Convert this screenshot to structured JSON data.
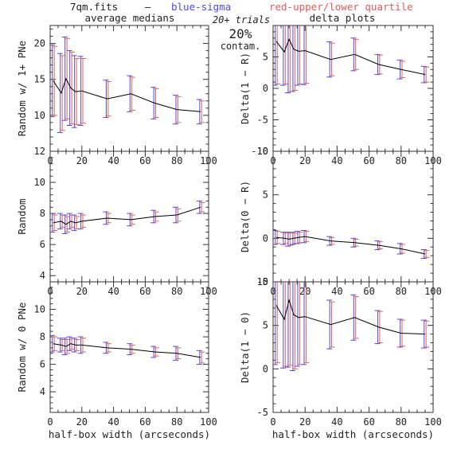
{
  "header": {
    "file": "7qm.fits",
    "dash": "–",
    "blue_label": "blue-sigma",
    "red_label": "red-upper/lower quartile",
    "trials": "20+ trials",
    "contam_pct": "20%",
    "contam_word": "contam.",
    "left_title": "average medians",
    "right_title": "delta plots"
  },
  "colors": {
    "line": "#000000",
    "blue": "#4a4ae8",
    "red": "#e85a5a",
    "axis": "#333333"
  },
  "chart_data": [
    {
      "type": "line",
      "panel": "top-left",
      "ylabel": "Random w/ 1+ PNe",
      "xlabel": "",
      "xlim": [
        0,
        100
      ],
      "ylim": [
        5,
        22.5
      ],
      "xticks": [
        0,
        20,
        40,
        60,
        80,
        100
      ],
      "yticks": [
        10,
        15,
        20
      ],
      "x": [
        2,
        7,
        10,
        13,
        16,
        20,
        36,
        51,
        66,
        80,
        95
      ],
      "y": [
        14.8,
        13.1,
        15.1,
        13.8,
        13.3,
        13.4,
        12.3,
        13.0,
        11.7,
        10.8,
        10.5
      ],
      "err_blue": [
        5.0,
        5.5,
        5.8,
        5.2,
        5.0,
        4.8,
        2.6,
        2.5,
        2.2,
        2.0,
        1.7
      ],
      "err_red": [
        4.8,
        5.2,
        5.6,
        5.0,
        4.6,
        4.5,
        2.4,
        2.3,
        2.0,
        1.8,
        1.5
      ]
    },
    {
      "type": "line",
      "panel": "top-right",
      "ylabel": "Delta(1 − R)",
      "xlabel": "",
      "xlim": [
        0,
        100
      ],
      "ylim": [
        -10,
        10
      ],
      "xticks": [
        0,
        20,
        40,
        60,
        80,
        100
      ],
      "yticks": [
        -10,
        -5,
        0,
        5
      ],
      "x": [
        2,
        7,
        10,
        13,
        16,
        20,
        36,
        51,
        66,
        80,
        95
      ],
      "y": [
        7.5,
        5.8,
        7.8,
        6.2,
        5.9,
        6.0,
        4.6,
        5.4,
        3.8,
        3.0,
        2.2
      ],
      "err_blue": [
        7.0,
        5.3,
        8.5,
        6.7,
        5.4,
        5.4,
        2.8,
        2.6,
        1.6,
        1.5,
        1.3
      ],
      "err_red": [
        6.8,
        5.1,
        8.3,
        6.5,
        5.2,
        5.2,
        2.6,
        2.4,
        1.5,
        1.3,
        1.2
      ]
    },
    {
      "type": "line",
      "panel": "middle-left",
      "ylabel": "Random",
      "xlabel": "",
      "xlim": [
        0,
        100
      ],
      "ylim": [
        3.6,
        12
      ],
      "xticks": [
        0,
        20,
        40,
        60,
        80,
        100
      ],
      "yticks": [
        4,
        6,
        8,
        10,
        12
      ],
      "x": [
        2,
        7,
        10,
        13,
        16,
        20,
        36,
        51,
        66,
        80,
        95
      ],
      "y": [
        7.4,
        7.5,
        7.3,
        7.5,
        7.4,
        7.5,
        7.7,
        7.6,
        7.8,
        7.9,
        8.4
      ],
      "err_blue": [
        0.6,
        0.5,
        0.6,
        0.5,
        0.5,
        0.5,
        0.4,
        0.4,
        0.4,
        0.5,
        0.4
      ],
      "err_red": [
        0.5,
        0.4,
        0.5,
        0.4,
        0.4,
        0.4,
        0.3,
        0.3,
        0.3,
        0.4,
        0.3
      ]
    },
    {
      "type": "line",
      "panel": "middle-right",
      "ylabel": "Delta(0 − R)",
      "xlabel": "",
      "xlim": [
        0,
        100
      ],
      "ylim": [
        -5,
        10
      ],
      "xticks": [
        0,
        20,
        40,
        60,
        80,
        100
      ],
      "yticks": [
        -5,
        0,
        5,
        10
      ],
      "x": [
        2,
        7,
        10,
        13,
        16,
        20,
        36,
        51,
        66,
        80,
        95
      ],
      "y": [
        0.1,
        0.0,
        -0.1,
        0.0,
        0.1,
        0.2,
        -0.3,
        -0.5,
        -0.8,
        -1.2,
        -1.8
      ],
      "err_blue": [
        0.8,
        0.7,
        0.8,
        0.7,
        0.7,
        0.7,
        0.5,
        0.5,
        0.5,
        0.6,
        0.5
      ],
      "err_red": [
        0.7,
        0.6,
        0.7,
        0.6,
        0.6,
        0.6,
        0.4,
        0.4,
        0.4,
        0.5,
        0.4
      ]
    },
    {
      "type": "line",
      "panel": "bottom-left",
      "ylabel": "Random w/ 0 PNe",
      "xlabel": "half-box width (arcseconds)",
      "xlim": [
        0,
        100
      ],
      "ylim": [
        2.5,
        12
      ],
      "xticks": [
        0,
        20,
        40,
        60,
        80,
        100
      ],
      "yticks": [
        4,
        6,
        8,
        10
      ],
      "x": [
        2,
        7,
        10,
        13,
        16,
        20,
        36,
        51,
        66,
        80,
        95
      ],
      "y": [
        7.5,
        7.4,
        7.3,
        7.5,
        7.4,
        7.4,
        7.2,
        7.1,
        6.9,
        6.8,
        6.5
      ],
      "err_blue": [
        0.6,
        0.5,
        0.6,
        0.5,
        0.5,
        0.6,
        0.4,
        0.4,
        0.4,
        0.5,
        0.5
      ],
      "err_red": [
        0.5,
        0.4,
        0.5,
        0.4,
        0.4,
        0.5,
        0.3,
        0.3,
        0.3,
        0.4,
        0.4
      ]
    },
    {
      "type": "line",
      "panel": "bottom-right",
      "ylabel": "Delta(1 − 0)",
      "xlabel": "half-box width (arcseconds)",
      "xlim": [
        0,
        100
      ],
      "ylim": [
        -5,
        10
      ],
      "xticks": [
        0,
        20,
        40,
        60,
        80,
        100
      ],
      "yticks": [
        -5,
        0,
        5,
        10
      ],
      "x": [
        2,
        7,
        10,
        13,
        16,
        20,
        36,
        51,
        66,
        80,
        95
      ],
      "y": [
        7.3,
        5.7,
        7.9,
        6.2,
        5.9,
        6.0,
        5.1,
        5.9,
        4.8,
        4.1,
        4.0
      ],
      "err_blue": [
        6.8,
        5.6,
        7.7,
        6.4,
        5.6,
        5.5,
        2.8,
        2.6,
        1.9,
        1.6,
        1.6
      ],
      "err_red": [
        6.6,
        5.4,
        7.5,
        6.2,
        5.4,
        5.3,
        2.6,
        2.4,
        1.8,
        1.5,
        1.5
      ]
    }
  ]
}
